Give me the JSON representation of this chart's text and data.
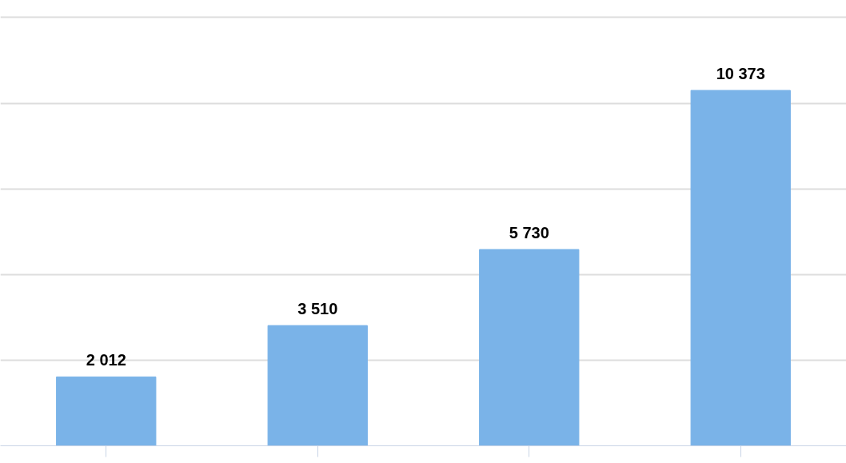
{
  "chart_data": {
    "type": "bar",
    "categories": [
      null,
      null,
      null,
      null
    ],
    "values": [
      2012,
      3510,
      5730,
      10373
    ],
    "value_labels": [
      "2 012",
      "3 510",
      "5 730",
      "10 373"
    ],
    "color": "#7ab3e8",
    "yticks": [
      {
        "value": 0,
        "label": null
      },
      {
        "value": 2500,
        "label": null
      },
      {
        "value": 5000,
        "label": null
      },
      {
        "value": 7500,
        "label": null
      },
      {
        "value": 10000,
        "label": null
      },
      {
        "value": 12500,
        "label": null
      }
    ],
    "grid": "y",
    "tick_labels": false
  }
}
